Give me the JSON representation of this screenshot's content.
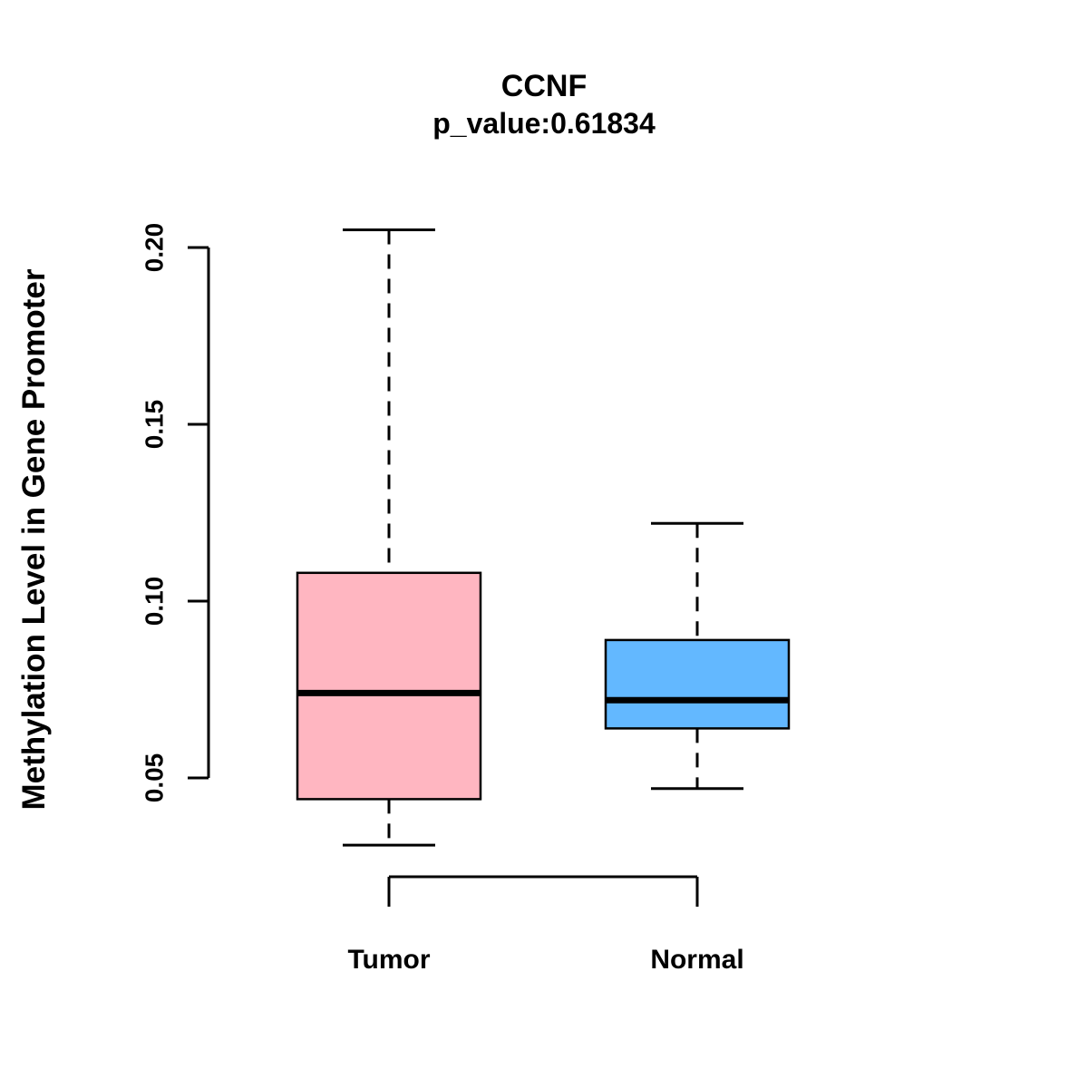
{
  "title": "CCNF",
  "subtitle": "p_value:0.61834",
  "ylabel": "Methylation Level in Gene Promoter",
  "chart_data": {
    "type": "boxplot",
    "title": "CCNF",
    "subtitle": "p_value:0.61834",
    "ylabel": "Methylation Level in Gene Promoter",
    "xlabel": "",
    "categories": [
      "Tumor",
      "Normal"
    ],
    "yticks": [
      0.05,
      0.1,
      0.15,
      0.2
    ],
    "ytick_labels": [
      "0.05",
      "0.10",
      "0.15",
      "0.20"
    ],
    "ylim": [
      0.03,
      0.21
    ],
    "grid": false,
    "legend": "none",
    "colors": {
      "tumor": "#FFB6C1",
      "normal": "#63B8FF",
      "stroke": "#000000"
    },
    "series": [
      {
        "name": "Tumor",
        "color": "#FFB6C1",
        "whisker_low": 0.031,
        "q1": 0.044,
        "median": 0.074,
        "q3": 0.108,
        "whisker_high": 0.205
      },
      {
        "name": "Normal",
        "color": "#63B8FF",
        "whisker_low": 0.047,
        "q1": 0.064,
        "median": 0.072,
        "q3": 0.089,
        "whisker_high": 0.122
      }
    ]
  }
}
